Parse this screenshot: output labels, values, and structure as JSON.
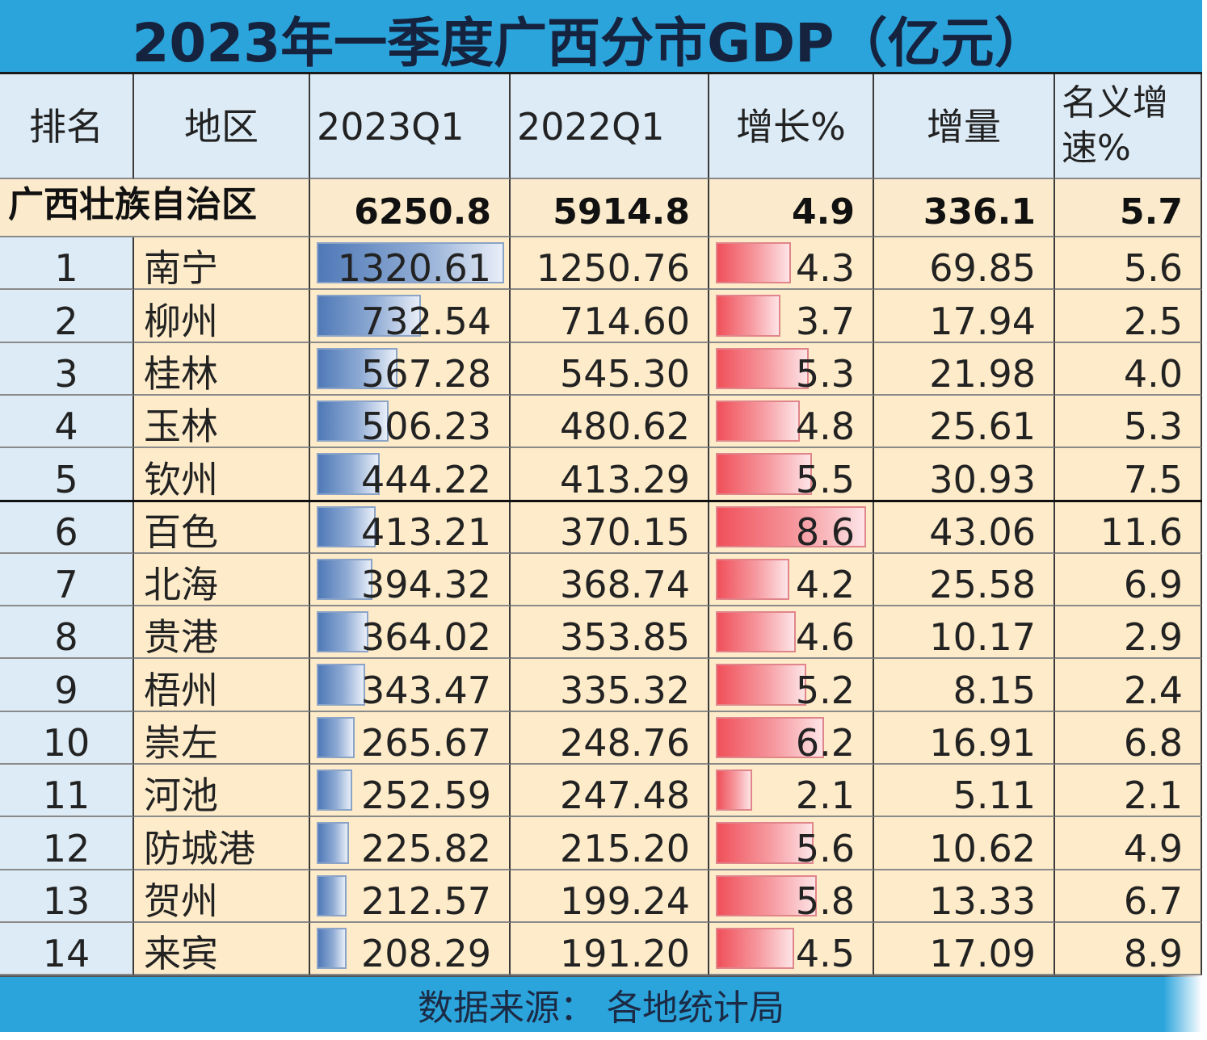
{
  "title": "2023年一季度广西分市GDP（亿元）",
  "footer": "数据来源：  各地统计局",
  "headers": [
    "排名",
    "地区",
    "2023Q1",
    "2022Q1",
    "增长%",
    "增量",
    "名义增速%"
  ],
  "header_multiline": {
    "line1": "名义增",
    "line2": "速%"
  },
  "summary": {
    "region": "广西壮族自治区",
    "q1_2023": "6250.8",
    "q1_2022": "5914.8",
    "growth": "4.9",
    "increment": "336.1",
    "nominal": "5.7"
  },
  "colors": {
    "header_bar": "#2ba4dc",
    "header_cell": "#dcebf6",
    "body_cell": "#fdebc9",
    "blue_bar": "#4f79b7",
    "red_bar": "#f0505a"
  },
  "chart_data": {
    "type": "table",
    "title": "2023年一季度广西分市GDP（亿元）",
    "columns": [
      "排名",
      "地区",
      "2023Q1",
      "2022Q1",
      "增长%",
      "增量",
      "名义增速%"
    ],
    "data_bars": {
      "2023Q1": {
        "color": "blue",
        "range": [
          0,
          1320.61
        ]
      },
      "增长%": {
        "color": "red",
        "range": [
          0,
          8.6
        ]
      }
    },
    "rows": [
      {
        "rank": "1",
        "city": "南宁",
        "q1_2023": "1320.61",
        "q1_2022": "1250.76",
        "growth": "4.3",
        "increment": "69.85",
        "nominal": "5.6"
      },
      {
        "rank": "2",
        "city": "柳州",
        "q1_2023": "732.54",
        "q1_2022": "714.60",
        "growth": "3.7",
        "increment": "17.94",
        "nominal": "2.5"
      },
      {
        "rank": "3",
        "city": "桂林",
        "q1_2023": "567.28",
        "q1_2022": "545.30",
        "growth": "5.3",
        "increment": "21.98",
        "nominal": "4.0"
      },
      {
        "rank": "4",
        "city": "玉林",
        "q1_2023": "506.23",
        "q1_2022": "480.62",
        "growth": "4.8",
        "increment": "25.61",
        "nominal": "5.3"
      },
      {
        "rank": "5",
        "city": "钦州",
        "q1_2023": "444.22",
        "q1_2022": "413.29",
        "growth": "5.5",
        "increment": "30.93",
        "nominal": "7.5"
      },
      {
        "rank": "6",
        "city": "百色",
        "q1_2023": "413.21",
        "q1_2022": "370.15",
        "growth": "8.6",
        "increment": "43.06",
        "nominal": "11.6"
      },
      {
        "rank": "7",
        "city": "北海",
        "q1_2023": "394.32",
        "q1_2022": "368.74",
        "growth": "4.2",
        "increment": "25.58",
        "nominal": "6.9"
      },
      {
        "rank": "8",
        "city": "贵港",
        "q1_2023": "364.02",
        "q1_2022": "353.85",
        "growth": "4.6",
        "increment": "10.17",
        "nominal": "2.9"
      },
      {
        "rank": "9",
        "city": "梧州",
        "q1_2023": "343.47",
        "q1_2022": "335.32",
        "growth": "5.2",
        "increment": "8.15",
        "nominal": "2.4"
      },
      {
        "rank": "10",
        "city": "崇左",
        "q1_2023": "265.67",
        "q1_2022": "248.76",
        "growth": "6.2",
        "increment": "16.91",
        "nominal": "6.8"
      },
      {
        "rank": "11",
        "city": "河池",
        "q1_2023": "252.59",
        "q1_2022": "247.48",
        "growth": "2.1",
        "increment": "5.11",
        "nominal": "2.1"
      },
      {
        "rank": "12",
        "city": "防城港",
        "q1_2023": "225.82",
        "q1_2022": "215.20",
        "growth": "5.6",
        "increment": "10.62",
        "nominal": "4.9"
      },
      {
        "rank": "13",
        "city": "贺州",
        "q1_2023": "212.57",
        "q1_2022": "199.24",
        "growth": "5.8",
        "increment": "13.33",
        "nominal": "6.7"
      },
      {
        "rank": "14",
        "city": "来宾",
        "q1_2023": "208.29",
        "q1_2022": "191.20",
        "growth": "4.5",
        "increment": "17.09",
        "nominal": "8.9"
      }
    ]
  }
}
